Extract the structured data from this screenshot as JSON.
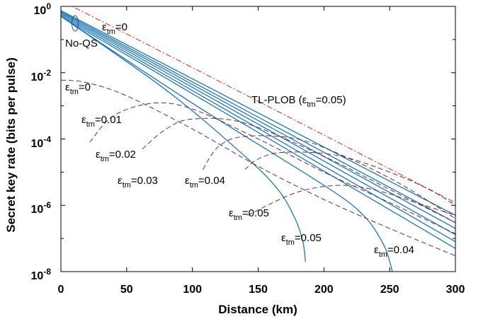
{
  "chart_data": {
    "type": "line",
    "xlabel": "Distance (km)",
    "ylabel": "Secret key rate (bits per pulse)",
    "xlim": [
      0,
      300
    ],
    "ylim": [
      1e-08,
      1
    ],
    "yscale": "log",
    "grid": false,
    "x_ticks": [
      "0",
      "50",
      "100",
      "150",
      "200",
      "250",
      "300"
    ],
    "y_ticks": [
      {
        "base": "10",
        "exp": "0"
      },
      {
        "base": "10",
        "exp": "-2"
      },
      {
        "base": "10",
        "exp": "-4"
      },
      {
        "base": "10",
        "exp": "-6"
      },
      {
        "base": "10",
        "exp": "-8"
      }
    ],
    "colors": {
      "solid": "#1f77b4",
      "dashed": "#6b2d3c",
      "plob": "#e4211c"
    },
    "annotations": [
      {
        "sym": "ε",
        "sub": "tm",
        "val": "=0"
      },
      {
        "text": "No-QS"
      },
      {
        "sym": "ε",
        "sub": "tm",
        "val": "=0"
      },
      {
        "text": "TL-PLOB (ε",
        "sub": "tm",
        "val": "=0.05)"
      },
      {
        "sym": "ε",
        "sub": "tm",
        "val": "=0.01"
      },
      {
        "sym": "ε",
        "sub": "tm",
        "val": "=0.02"
      },
      {
        "sym": "ε",
        "sub": "tm",
        "val": "=0.03"
      },
      {
        "sym": "ε",
        "sub": "tm",
        "val": "=0.04"
      },
      {
        "sym": "ε",
        "sub": "tm",
        "val": "=0.05"
      },
      {
        "sym": "ε",
        "sub": "tm",
        "val": "=0.05"
      },
      {
        "sym": "ε",
        "sub": "tm",
        "val": "=0.04"
      }
    ],
    "series": [
      {
        "style": "plob",
        "x": [
          0,
          12,
          300
        ],
        "y": [
          1,
          0.85,
          1.2e-06
        ]
      },
      {
        "style": "solid",
        "x": [
          0,
          300
        ],
        "y": [
          0.75,
          5e-07
        ]
      },
      {
        "style": "solid",
        "x": [
          0,
          300
        ],
        "y": [
          0.7,
          3e-07
        ]
      },
      {
        "style": "solid",
        "x": [
          0,
          300
        ],
        "y": [
          0.65,
          2e-07
        ]
      },
      {
        "style": "solid",
        "x": [
          0,
          300
        ],
        "y": [
          0.6,
          1.3e-07
        ]
      },
      {
        "style": "solid",
        "x": [
          0,
          300
        ],
        "y": [
          0.55,
          8e-08
        ]
      },
      {
        "style": "solid",
        "x": [
          0,
          300
        ],
        "y": [
          0.5,
          5e-08
        ]
      },
      {
        "style": "solid",
        "x": [
          0,
          100,
          200,
          230,
          245,
          250,
          252
        ],
        "y": [
          0.5,
          0.0012,
          4e-06,
          5e-07,
          7e-08,
          2e-08,
          1e-08
        ]
      },
      {
        "style": "solid",
        "x": [
          0,
          80,
          140,
          165,
          178,
          184,
          186
        ],
        "y": [
          0.5,
          0.003,
          3e-05,
          3e-06,
          4e-07,
          8e-08,
          2e-08
        ]
      },
      {
        "style": "dashed",
        "x": [
          0,
          20,
          50,
          100,
          150,
          200,
          250,
          300
        ],
        "y": [
          0.006,
          0.005,
          0.002,
          0.0002,
          1.5e-05,
          1.5e-06,
          2e-07,
          3e-08
        ]
      },
      {
        "style": "dashed",
        "x": [
          22,
          40,
          70,
          100,
          150,
          200,
          250,
          300
        ],
        "y": [
          8e-05,
          0.0005,
          0.0012,
          0.0008,
          0.0001,
          1e-05,
          1.2e-06,
          1.4e-07
        ]
      },
      {
        "style": "dashed",
        "x": [
          62,
          80,
          100,
          140,
          200,
          250,
          300
        ],
        "y": [
          5e-05,
          0.0002,
          0.0004,
          0.0003,
          3e-05,
          3e-06,
          3e-07
        ]
      },
      {
        "style": "dashed",
        "x": [
          108,
          120,
          140,
          180,
          220,
          260,
          300
        ],
        "y": [
          1.2e-05,
          6e-05,
          0.00012,
          0.0001,
          2.5e-05,
          4e-06,
          4e-07
        ]
      },
      {
        "style": "dashed",
        "x": [
          140,
          150,
          170,
          210,
          250,
          280,
          300
        ],
        "y": [
          1.2e-05,
          2.5e-05,
          4e-05,
          3.2e-05,
          1e-05,
          3e-06,
          1e-06
        ]
      },
      {
        "style": "dashed",
        "x": [
          142,
          180,
          215,
          245,
          270,
          300
        ],
        "y": [
          5e-07,
          2.5e-06,
          4e-06,
          2.5e-06,
          1.2e-06,
          5e-07
        ]
      }
    ]
  }
}
